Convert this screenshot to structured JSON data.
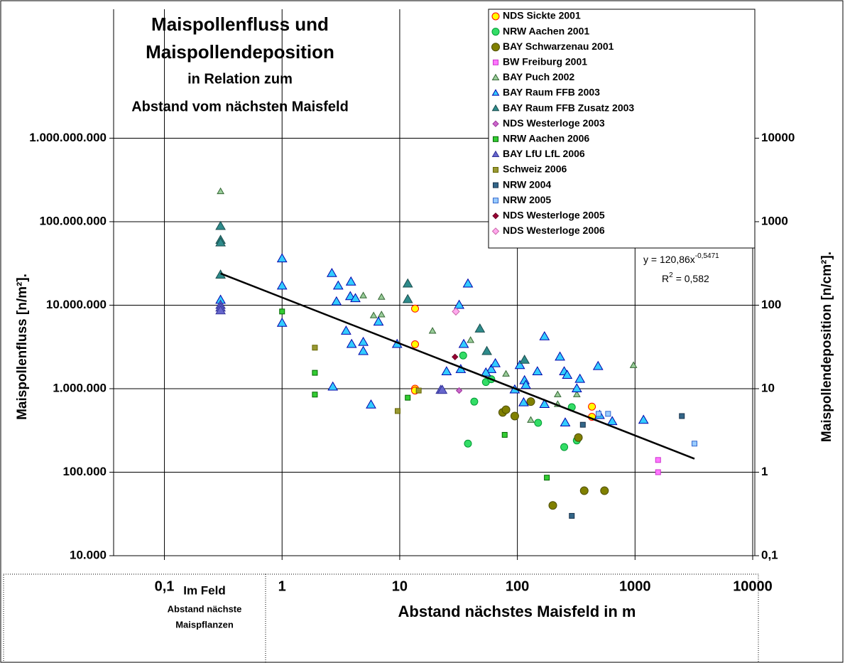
{
  "chart_data": {
    "type": "scatter",
    "title": [
      "Maispollenfluss und",
      "Maispollendeposition",
      "in Relation zum",
      "Abstand vom nächsten Maisfeld"
    ],
    "y_label": "Maispollenfluss [n/m²].",
    "y2_label": "Maispollendeposition [n/cm²].",
    "x_label": "Abstand nächstes Maisfeld in m",
    "field_note": [
      "Im Feld",
      "Abstand nächste",
      "Maispflanzen"
    ],
    "log_x": true,
    "log_y": true,
    "grid": true,
    "legend": "upper right",
    "xlim": [
      0.037,
      10000
    ],
    "xticks": [
      {
        "value": 0.1,
        "label": "0,1"
      },
      1,
      10,
      100,
      1000,
      10000
    ],
    "ylim": [
      10000,
      35000000000
    ],
    "yticks": [
      {
        "value": 10000,
        "label": "10.000"
      },
      {
        "value": 100000,
        "label": "100.000"
      },
      {
        "value": 1000000,
        "label": "1.000.000"
      },
      {
        "value": 10000000,
        "label": "10.000.000"
      },
      {
        "value": 100000000,
        "label": "100.000.000"
      },
      {
        "value": 1000000000,
        "label": "1.000.000.000"
      }
    ],
    "y2lim": [
      0.1,
      350000
    ],
    "y2ticks": [
      {
        "value": 0.1,
        "label": "0,1"
      },
      1,
      10,
      100,
      1000,
      10000
    ],
    "equation": {
      "base": "y = 120,86x",
      "exponent": "-0,5471"
    },
    "r_squared": {
      "base": "R",
      "exponent": "2",
      "rest": "= 0,582"
    },
    "trendline": {
      "color": "#000000",
      "x": [
        0.3,
        3200
      ],
      "values": [
        24000000,
        145000
      ]
    },
    "series": [
      {
        "name": "NDS Sickte 2001",
        "color": "#ffff00",
        "edge": "#ff0000",
        "marker": "circle",
        "size": 5,
        "x": [
          13.5,
          13.5,
          13.5,
          13.5,
          430,
          430
        ],
        "values": [
          9100000,
          3400000,
          1000000,
          950000,
          610000,
          460000
        ]
      },
      {
        "name": "NRW Aachen 2001",
        "color": "#33dd66",
        "edge": "#009933",
        "marker": "circle",
        "size": 5,
        "x": [
          34.6,
          54,
          60,
          43,
          38,
          150,
          290,
          250,
          320
        ],
        "values": [
          2500000,
          1200000,
          1300000,
          700000,
          220000,
          390000,
          600000,
          200000,
          240000
        ]
      },
      {
        "name": "BAY Schwarzenau 2001",
        "color": "#808000",
        "edge": "#4d4d00",
        "marker": "circle",
        "size": 5.5,
        "x": [
          75,
          80,
          95,
          130,
          330,
          200,
          370,
          550
        ],
        "values": [
          520000,
          560000,
          470000,
          700000,
          260000,
          40000,
          60000,
          60000
        ]
      },
      {
        "name": "BW Freiburg 2001",
        "color": "#ff77ff",
        "edge": "#cc33cc",
        "marker": "square",
        "size": 7,
        "x": [
          1570,
          1570
        ],
        "values": [
          140000,
          100000
        ]
      },
      {
        "name": "BAY Puch 2002",
        "color": "#99cc99",
        "edge": "#336633",
        "marker": "triangle",
        "size": 9,
        "x": [
          0.3,
          4.9,
          7,
          6,
          7,
          19,
          40,
          80,
          220,
          220,
          130,
          320,
          970
        ],
        "values": [
          230000000,
          13000000,
          12500000,
          7500000,
          7700000,
          4900000,
          3800000,
          1500000,
          850000,
          650000,
          420000,
          850000,
          1900000
        ]
      },
      {
        "name": "BAY Raum FFB 2003",
        "color": "#33ccff",
        "edge": "#0000aa",
        "marker": "triangle",
        "size": 13,
        "x": [
          0.3,
          1.0,
          1.0,
          1.0,
          2.65,
          3.0,
          2.9,
          3.8,
          3.85,
          4.2,
          3.5,
          3.9,
          4.9,
          4.9,
          2.7,
          5.7,
          6.6,
          9.5,
          32,
          38,
          35,
          33,
          25,
          60,
          65,
          54,
          95,
          105,
          115,
          118,
          113,
          148,
          170,
          170,
          230,
          250,
          265,
          255,
          320,
          340,
          485,
          500,
          640,
          1180
        ],
        "values": [
          11500000,
          36000000,
          17000000,
          6100000,
          24000000,
          17000000,
          11000000,
          12700000,
          19000000,
          12000000,
          4900000,
          3400000,
          3600000,
          2800000,
          1050000,
          640000,
          6300000,
          3400000,
          10000000,
          18000000,
          3400000,
          1700000,
          1600000,
          1700000,
          2000000,
          1550000,
          970000,
          1900000,
          1250000,
          1100000,
          680000,
          1600000,
          4200000,
          650000,
          2400000,
          1600000,
          1450000,
          390000,
          1000000,
          1300000,
          1850000,
          480000,
          405000,
          420000
        ]
      },
      {
        "name": "BAY Raum FFB Zusatz 2003",
        "color": "#2e8b8b",
        "edge": "#1a4d4d",
        "marker": "triangle",
        "size": 13,
        "x": [
          0.3,
          0.3,
          0.3,
          0.3,
          11.7,
          11.7,
          48,
          55,
          115
        ],
        "values": [
          88000000,
          60000000,
          56000000,
          23000000,
          18000000,
          11700000,
          5200000,
          2800000,
          2200000
        ]
      },
      {
        "name": "NDS Westerloge 2003",
        "color": "#cc66cc",
        "edge": "#993399",
        "marker": "diamond",
        "size": 8,
        "x": [
          32
        ],
        "values": [
          950000
        ]
      },
      {
        "name": "NRW Aachen 2006",
        "color": "#33cc33",
        "edge": "#006600",
        "marker": "square",
        "size": 7,
        "x": [
          1.0,
          1.9,
          1.9,
          11.7,
          78,
          178
        ],
        "values": [
          8400000,
          1550000,
          850000,
          780000,
          280000,
          86000
        ]
      },
      {
        "name": "BAY LfU LfL 2006",
        "color": "#6666cc",
        "edge": "#333399",
        "marker": "triangle",
        "size": 13,
        "x": [
          0.3,
          0.3,
          0.3,
          22.3,
          23
        ],
        "values": [
          10000000,
          9300000,
          8600000,
          960000,
          960000
        ]
      },
      {
        "name": "Schweiz 2006",
        "color": "#999933",
        "edge": "#666600",
        "marker": "square",
        "size": 7,
        "x": [
          1.9,
          9.6,
          14.5
        ],
        "values": [
          3100000,
          540000,
          950000
        ]
      },
      {
        "name": "NRW 2004",
        "color": "#336688",
        "edge": "#1a334d",
        "marker": "square",
        "size": 7,
        "x": [
          360,
          290,
          2500
        ],
        "values": [
          370000,
          30000,
          470000
        ]
      },
      {
        "name": "NRW 2005",
        "color": "#99ccff",
        "edge": "#3366cc",
        "marker": "square",
        "size": 7,
        "x": [
          490,
          590,
          3200
        ],
        "values": [
          500000,
          500000,
          220000
        ]
      },
      {
        "name": "NDS Westerloge 2005",
        "color": "#990033",
        "edge": "#660022",
        "marker": "diamond",
        "size": 8,
        "x": [
          29.5
        ],
        "values": [
          2400000
        ]
      },
      {
        "name": "NDS Westerloge 2006",
        "color": "#ffaaee",
        "edge": "#cc66aa",
        "marker": "diamond",
        "size": 10,
        "x": [
          30
        ],
        "values": [
          8400000
        ]
      }
    ]
  }
}
